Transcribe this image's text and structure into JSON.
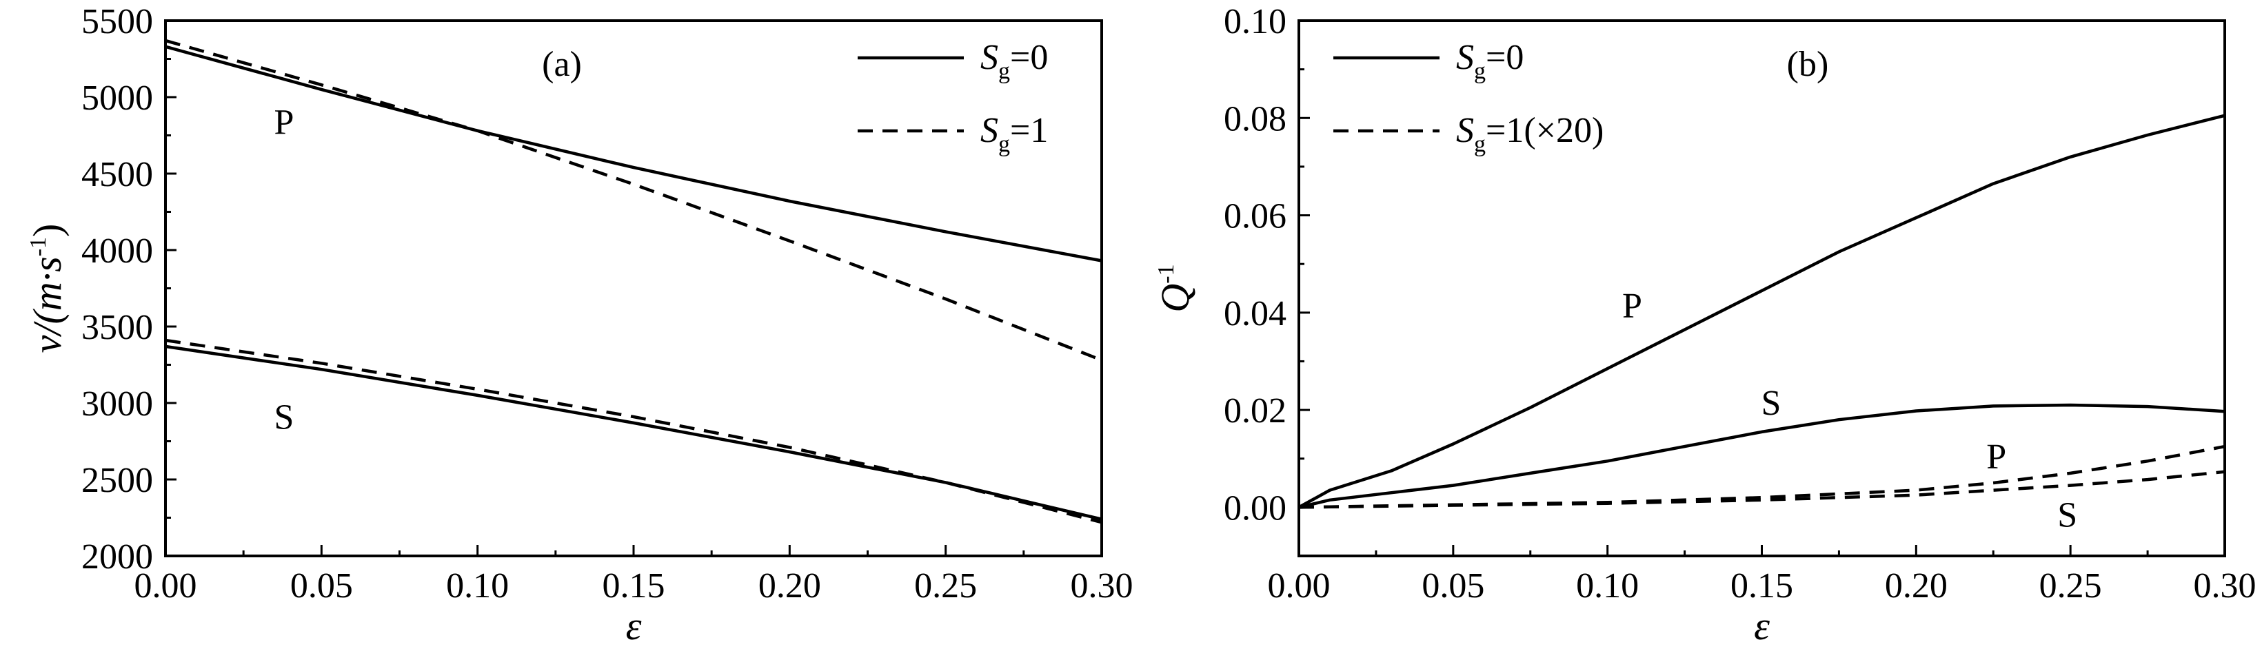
{
  "chart_data": [
    {
      "id": "a",
      "type": "line",
      "panel_label": "(a)",
      "xlabel": "ε",
      "ylabel": "v/(m·s⁻¹)",
      "ylabel_parts": {
        "main": "v/(m·s",
        "sup": "-1",
        "close": ")"
      },
      "xlim": [
        0.0,
        0.3
      ],
      "ylim": [
        2000,
        5500
      ],
      "xticks": [
        0.0,
        0.05,
        0.1,
        0.15,
        0.2,
        0.25,
        0.3
      ],
      "xtick_labels": [
        "0.00",
        "0.05",
        "0.10",
        "0.15",
        "0.20",
        "0.25",
        "0.30"
      ],
      "yticks": [
        2000,
        2500,
        3000,
        3500,
        4000,
        4500,
        5000,
        5500
      ],
      "ytick_labels": [
        "2000",
        "2500",
        "3000",
        "3500",
        "4000",
        "4500",
        "5000",
        "5500"
      ],
      "grid": false,
      "legend": {
        "placement": "top-right",
        "entries": [
          {
            "main": "S",
            "sub": "g",
            "rest": "=0",
            "style": "solid"
          },
          {
            "main": "S",
            "sub": "g",
            "rest": "=1",
            "style": "dashed"
          }
        ]
      },
      "annotations": [
        {
          "text": "P",
          "x": 0.038,
          "y": 4760
        },
        {
          "text": "S",
          "x": 0.038,
          "y": 2830
        }
      ],
      "series": [
        {
          "group": "P",
          "style": "solid",
          "x": [
            0.0,
            0.05,
            0.1,
            0.15,
            0.2,
            0.25,
            0.3
          ],
          "y": [
            5330,
            5050,
            4780,
            4540,
            4320,
            4120,
            3930
          ]
        },
        {
          "group": "P",
          "style": "dashed",
          "x": [
            0.0,
            0.05,
            0.1,
            0.15,
            0.2,
            0.25,
            0.3
          ],
          "y": [
            5370,
            5080,
            4780,
            4430,
            4060,
            3680,
            3280
          ]
        },
        {
          "group": "S",
          "style": "solid",
          "x": [
            0.0,
            0.05,
            0.1,
            0.15,
            0.2,
            0.25,
            0.3
          ],
          "y": [
            3370,
            3220,
            3050,
            2870,
            2680,
            2480,
            2240
          ]
        },
        {
          "group": "S",
          "style": "dashed",
          "x": [
            0.0,
            0.05,
            0.1,
            0.15,
            0.2,
            0.25,
            0.3
          ],
          "y": [
            3410,
            3260,
            3090,
            2910,
            2710,
            2480,
            2220
          ]
        }
      ]
    },
    {
      "id": "b",
      "type": "line",
      "panel_label": "(b)",
      "xlabel": "ε",
      "ylabel": "Q⁻¹",
      "ylabel_parts": {
        "main": "Q",
        "sup": "-1",
        "close": ""
      },
      "xlim": [
        0.0,
        0.3
      ],
      "ylim": [
        -0.01,
        0.1
      ],
      "xticks": [
        0.0,
        0.05,
        0.1,
        0.15,
        0.2,
        0.25,
        0.3
      ],
      "xtick_labels": [
        "0.00",
        "0.05",
        "0.10",
        "0.15",
        "0.20",
        "0.25",
        "0.30"
      ],
      "yticks": [
        0.0,
        0.02,
        0.04,
        0.06,
        0.08,
        0.1
      ],
      "ytick_labels": [
        "0.00",
        "0.02",
        "0.04",
        "0.06",
        "0.08",
        "0.10"
      ],
      "grid": false,
      "legend": {
        "placement": "top-left",
        "entries": [
          {
            "main": "S",
            "sub": "g",
            "rest": "=0",
            "style": "solid"
          },
          {
            "main": "S",
            "sub": "g",
            "rest": "=1(×20)",
            "style": "dashed"
          }
        ]
      },
      "annotations": [
        {
          "text": "P",
          "x": 0.108,
          "y": 0.039
        },
        {
          "text": "S",
          "x": 0.153,
          "y": 0.019
        },
        {
          "text": "P",
          "x": 0.226,
          "y": 0.008
        },
        {
          "text": "S",
          "x": 0.249,
          "y": -0.004
        }
      ],
      "series": [
        {
          "group": "P",
          "style": "solid",
          "x": [
            0.0,
            0.01,
            0.03,
            0.05,
            0.075,
            0.1,
            0.125,
            0.15,
            0.175,
            0.2,
            0.225,
            0.25,
            0.275,
            0.3
          ],
          "y": [
            0.0,
            0.0035,
            0.0075,
            0.013,
            0.0205,
            0.0285,
            0.0365,
            0.0445,
            0.0525,
            0.0595,
            0.0665,
            0.072,
            0.0765,
            0.0805
          ]
        },
        {
          "group": "S",
          "style": "solid",
          "x": [
            0.0,
            0.01,
            0.03,
            0.05,
            0.075,
            0.1,
            0.125,
            0.15,
            0.175,
            0.2,
            0.225,
            0.25,
            0.275,
            0.3
          ],
          "y": [
            0.0,
            0.0015,
            0.003,
            0.0045,
            0.007,
            0.0095,
            0.0125,
            0.0155,
            0.018,
            0.0198,
            0.0208,
            0.021,
            0.0207,
            0.0197
          ]
        },
        {
          "group": "P",
          "style": "dashed",
          "x": [
            0.0,
            0.05,
            0.1,
            0.15,
            0.2,
            0.225,
            0.25,
            0.275,
            0.3
          ],
          "y": [
            0.0,
            0.0005,
            0.001,
            0.002,
            0.0035,
            0.005,
            0.007,
            0.0095,
            0.0125
          ]
        },
        {
          "group": "S",
          "style": "dashed",
          "x": [
            0.0,
            0.05,
            0.1,
            0.15,
            0.2,
            0.225,
            0.25,
            0.275,
            0.3
          ],
          "y": [
            0.0,
            0.0004,
            0.0008,
            0.0015,
            0.0025,
            0.0035,
            0.0045,
            0.0057,
            0.0073
          ]
        }
      ]
    }
  ]
}
